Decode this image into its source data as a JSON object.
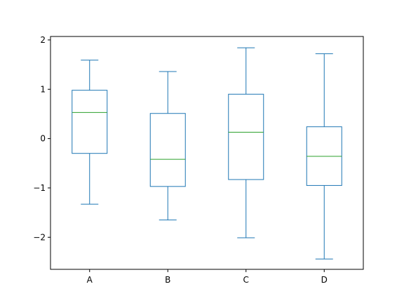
{
  "chart_data": {
    "type": "box",
    "categories": [
      "A",
      "B",
      "C",
      "D"
    ],
    "boxes": [
      {
        "label": "A",
        "whislo": -1.33,
        "q1": -0.3,
        "med": 0.53,
        "q3": 0.98,
        "whishi": 1.59
      },
      {
        "label": "B",
        "whislo": -1.65,
        "q1": -0.97,
        "med": -0.42,
        "q3": 0.51,
        "whishi": 1.36
      },
      {
        "label": "C",
        "whislo": -2.01,
        "q1": -0.83,
        "med": 0.13,
        "q3": 0.9,
        "whishi": 1.84
      },
      {
        "label": "D",
        "whislo": -2.44,
        "q1": -0.95,
        "med": -0.36,
        "q3": 0.24,
        "whishi": 1.72
      }
    ],
    "ylim": [
      -2.65,
      2.07
    ],
    "yticks": [
      -2,
      -1,
      0,
      1,
      2
    ],
    "ytick_labels": [
      "−2",
      "−1",
      "0",
      "1",
      "2"
    ],
    "title": "",
    "xlabel": "",
    "ylabel": "",
    "grid": false,
    "colors": {
      "box": "#1f77b4",
      "median": "#2ca02c",
      "axes": "#000000"
    }
  }
}
